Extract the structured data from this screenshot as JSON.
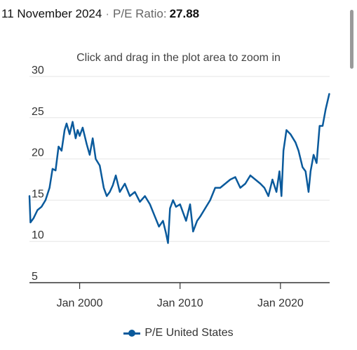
{
  "header": {
    "date": "11 November 2024",
    "separator": "·",
    "label": "P/E Ratio:",
    "value": "27.88"
  },
  "zoom_hint": "Click and drag in the plot area to zoom in",
  "legend": {
    "label": "P/E United States"
  },
  "colors": {
    "series": "#0a5a9c",
    "grid": "#e6e6e6",
    "axis": "#333333"
  },
  "chart_data": {
    "type": "line",
    "title": "",
    "xlabel": "",
    "ylabel": "",
    "x_range": [
      1995.0,
      2024.9
    ],
    "ylim": [
      5,
      30
    ],
    "y_ticks": [
      5,
      10,
      15,
      20,
      25,
      30
    ],
    "x_ticks": [
      {
        "label": "Jan 2000",
        "value": 2000
      },
      {
        "label": "Jan 2010",
        "value": 2010
      },
      {
        "label": "Jan 2020",
        "value": 2020
      }
    ],
    "grid": true,
    "legend_position": "bottom-center",
    "series": [
      {
        "name": "P/E United States",
        "x": [
          1995.0,
          1995.1,
          1995.4,
          1995.8,
          1996.2,
          1996.6,
          1997.0,
          1997.3,
          1997.6,
          1997.9,
          1998.2,
          1998.5,
          1998.7,
          1999.0,
          1999.3,
          1999.6,
          1999.8,
          2000.0,
          2000.3,
          2000.7,
          2001.0,
          2001.3,
          2001.6,
          2002.0,
          2002.4,
          2002.7,
          2003.0,
          2003.3,
          2003.6,
          2004.0,
          2004.5,
          2005.0,
          2005.5,
          2006.0,
          2006.5,
          2007.0,
          2007.5,
          2007.9,
          2008.3,
          2008.6,
          2008.8,
          2009.0,
          2009.3,
          2009.6,
          2010.0,
          2010.3,
          2010.6,
          2011.0,
          2011.3,
          2011.7,
          2012.0,
          2012.5,
          2013.0,
          2013.5,
          2014.0,
          2014.5,
          2015.0,
          2015.5,
          2016.0,
          2016.5,
          2017.0,
          2017.5,
          2018.0,
          2018.4,
          2018.8,
          2019.2,
          2019.6,
          2019.9,
          2020.1,
          2020.3,
          2020.6,
          2021.0,
          2021.5,
          2021.8,
          2022.2,
          2022.5,
          2022.8,
          2023.0,
          2023.3,
          2023.6,
          2023.9,
          2024.2,
          2024.5,
          2024.86
        ],
        "y": [
          15.5,
          12.3,
          12.8,
          13.8,
          14.2,
          15.0,
          16.5,
          18.8,
          18.6,
          21.5,
          21.0,
          23.5,
          24.3,
          23.0,
          24.5,
          22.5,
          23.5,
          22.8,
          23.8,
          21.8,
          20.5,
          22.5,
          20.0,
          19.2,
          16.5,
          15.5,
          16.0,
          16.8,
          18.0,
          16.0,
          17.0,
          15.5,
          16.0,
          14.8,
          15.5,
          14.5,
          13.0,
          11.8,
          12.5,
          11.0,
          9.8,
          14.0,
          15.0,
          14.2,
          14.5,
          13.5,
          12.5,
          14.5,
          11.2,
          12.5,
          13.0,
          14.0,
          15.0,
          16.5,
          16.5,
          17.0,
          17.5,
          17.8,
          16.5,
          17.0,
          18.0,
          17.5,
          17.0,
          16.5,
          15.5,
          17.5,
          16.0,
          18.5,
          15.5,
          21.0,
          23.5,
          23.0,
          22.0,
          21.0,
          19.0,
          18.5,
          16.0,
          18.5,
          20.5,
          19.5,
          24.0,
          24.0,
          26.0,
          27.88
        ]
      }
    ]
  }
}
